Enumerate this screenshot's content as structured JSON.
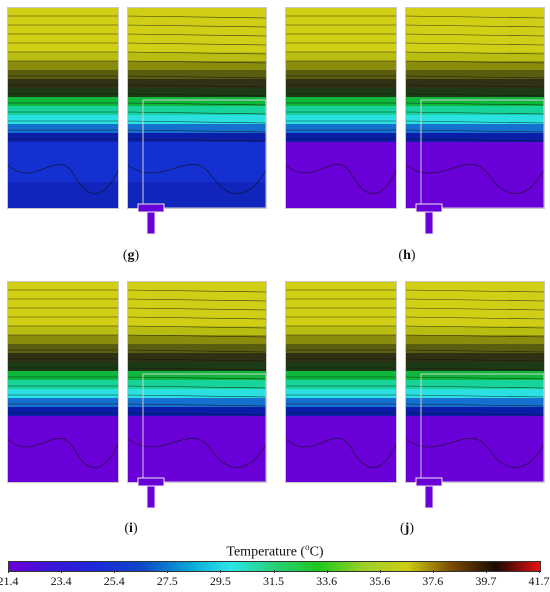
{
  "panels": [
    {
      "label": "g",
      "bands": [
        0.2,
        0.24,
        0.29,
        0.34,
        0.4,
        0.44,
        0.47,
        0.5,
        0.53,
        0.56
      ],
      "lower_level": 0.16,
      "mix_top": 0.52
    },
    {
      "label": "h",
      "bands": [
        0.18,
        0.23,
        0.28,
        0.32,
        0.36,
        0.39,
        0.42,
        0.45,
        0.48,
        0.52
      ],
      "lower_level": 0.04,
      "mix_top": 0.58
    },
    {
      "label": "i",
      "bands": [
        0.22,
        0.27,
        0.31,
        0.36,
        0.4,
        0.44,
        0.47,
        0.5,
        0.53,
        0.56
      ],
      "lower_level": 0.02,
      "mix_top": 0.62
    },
    {
      "label": "j",
      "bands": [
        0.2,
        0.24,
        0.28,
        0.32,
        0.36,
        0.4,
        0.44,
        0.48,
        0.52,
        0.56
      ],
      "lower_level": 0.0,
      "mix_top": 0.7
    }
  ],
  "colorbar": {
    "title": "Temperature (",
    "title_unit_sup": "o",
    "title_unit": "C)",
    "ticks": [
      "21.4",
      "23.4",
      "25.4",
      "27.5",
      "29.5",
      "31.5",
      "33.6",
      "35.6",
      "37.6",
      "39.7",
      "41.7"
    ],
    "min": 21.4,
    "max": 41.7,
    "colors": [
      "#6a00d8",
      "#3a16d8",
      "#1a2ad8",
      "#0f46c8",
      "#07a0d4",
      "#29e6e8",
      "#28d078",
      "#1ec81e",
      "#9ad028",
      "#cdcd14",
      "#7a4a00",
      "#1a0a00",
      "#e81010"
    ]
  }
}
